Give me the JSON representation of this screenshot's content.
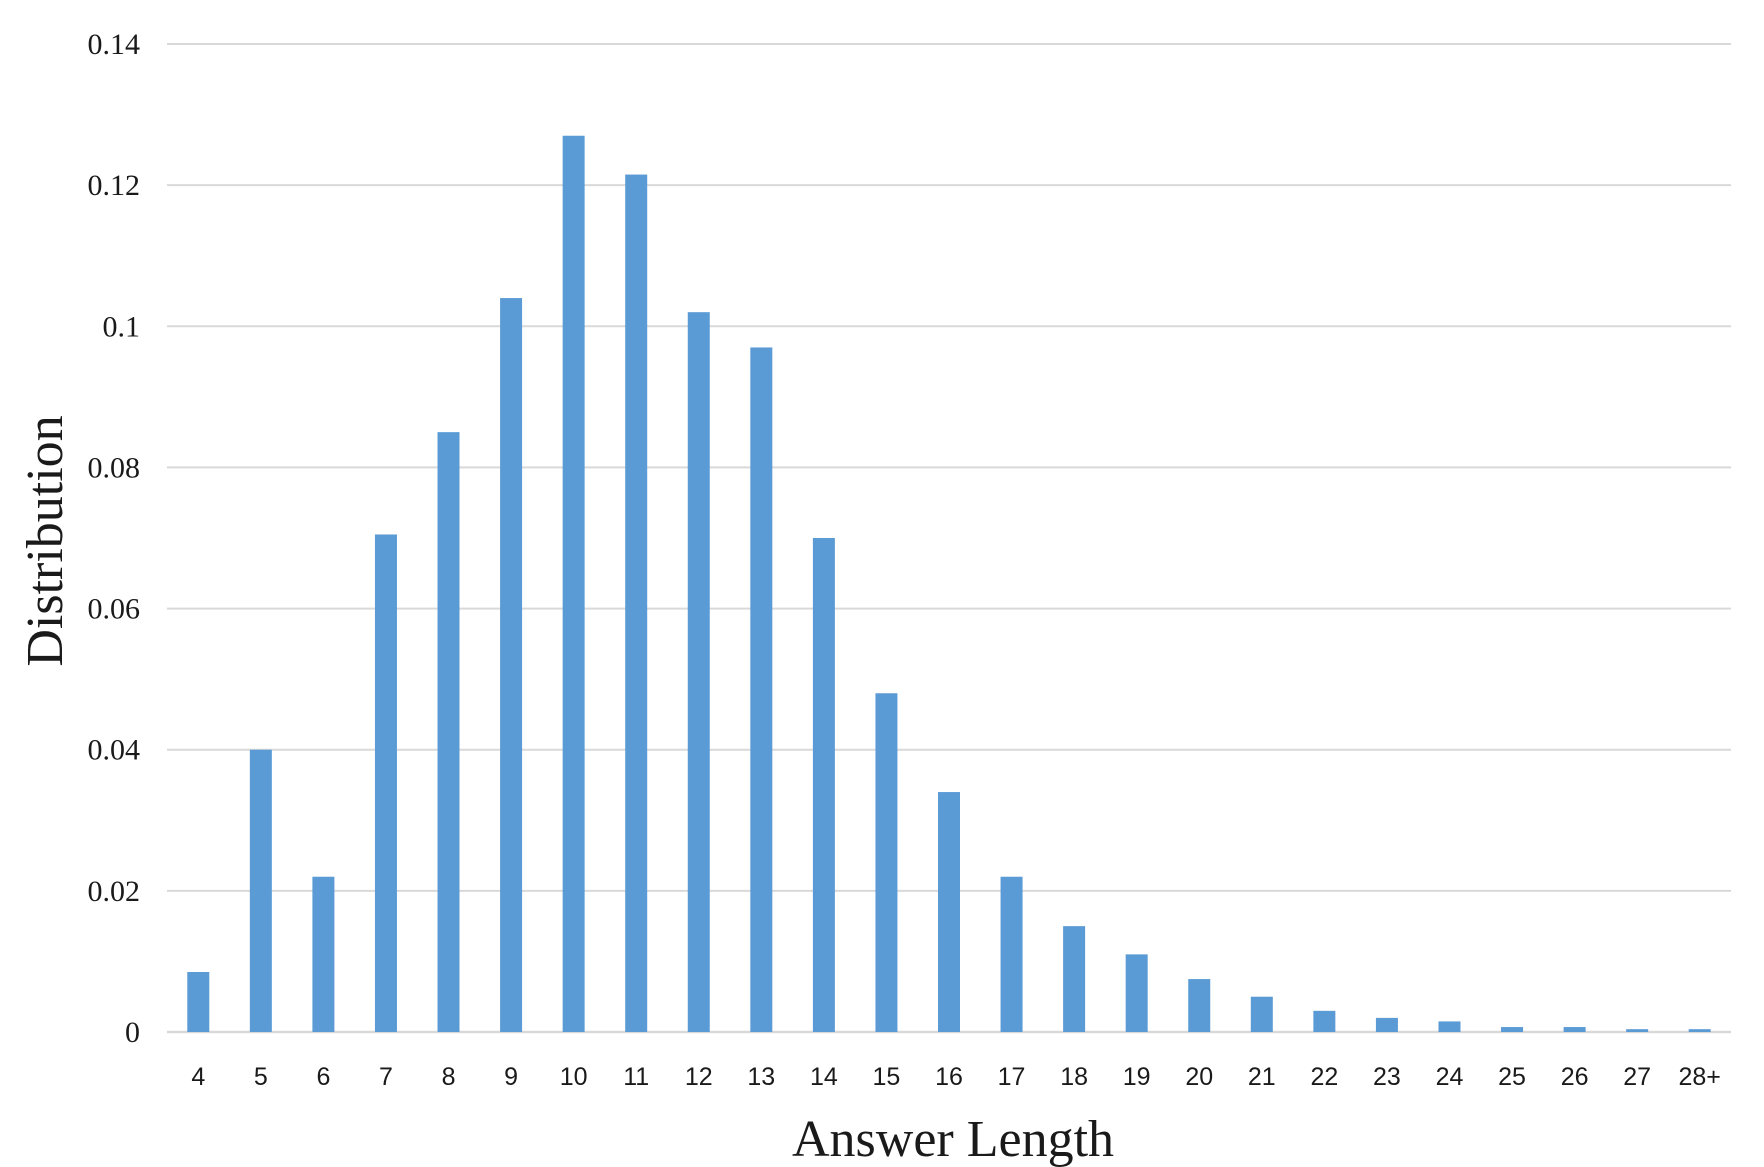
{
  "chart_data": {
    "type": "bar",
    "title": "",
    "xlabel": "Answer Length",
    "ylabel": "Distribution",
    "ylim": [
      0,
      0.14
    ],
    "yticks": [
      "0",
      "0.02",
      "0.04",
      "0.06",
      "0.08",
      "0.1",
      "0.12",
      "0.14"
    ],
    "grid": true,
    "bar_color": "#5b9bd5",
    "grid_color": "#d9d9d9",
    "categories": [
      "4",
      "5",
      "6",
      "7",
      "8",
      "9",
      "10",
      "11",
      "12",
      "13",
      "14",
      "15",
      "16",
      "17",
      "18",
      "19",
      "20",
      "21",
      "22",
      "23",
      "24",
      "25",
      "26",
      "27",
      "28+"
    ],
    "values": [
      0.0085,
      0.04,
      0.022,
      0.0705,
      0.085,
      0.104,
      0.127,
      0.1215,
      0.102,
      0.097,
      0.07,
      0.048,
      0.034,
      0.022,
      0.015,
      0.011,
      0.0075,
      0.005,
      0.003,
      0.002,
      0.0015,
      0.0007,
      0.0007,
      0.0004,
      0.0004
    ]
  }
}
